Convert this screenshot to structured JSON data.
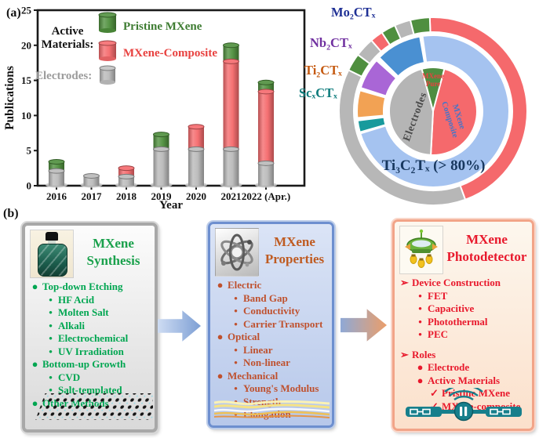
{
  "panel_a_label": "(a)",
  "panel_b_label": "(b)",
  "chart_data": [
    {
      "type": "bar",
      "stacked": true,
      "title": "",
      "xlabel": "Year",
      "ylabel": "Publications",
      "ylim": [
        0,
        25
      ],
      "yticks": [
        0,
        5,
        10,
        15,
        20,
        25
      ],
      "categories": [
        "2016",
        "2017",
        "2018",
        "2019",
        "2020",
        "2021",
        "2022 (Apr.)"
      ],
      "series": [
        {
          "name": "Electrodes",
          "color": "#b9b9b9",
          "values": [
            2.1,
            1.4,
            1.3,
            5.2,
            5.2,
            5.2,
            3.2
          ]
        },
        {
          "name": "MXene-Composite",
          "color": "#f5696c",
          "values": [
            0,
            0,
            1.2,
            0,
            3.2,
            12.5,
            10.2
          ]
        },
        {
          "name": "Pristine MXene",
          "color": "#4e8f3c",
          "values": [
            1.3,
            0,
            0,
            2.1,
            0,
            2.3,
            1.3
          ]
        }
      ],
      "legend": {
        "group_label_lines": [
          "Active",
          "Materials:"
        ],
        "group_label_color": "#111111",
        "entries": [
          {
            "label": "Pristine MXene",
            "swatch_color": "#4e8f3c",
            "text_color": "#3e7c32"
          },
          {
            "label": "MXene-Composite",
            "swatch_color": "#f5696c",
            "text_color": "#e8413f"
          }
        ],
        "electrodes_label": "Electrodes:",
        "electrodes_text_color": "#9b9b9b",
        "electrodes_swatch_color": "#c0c0c0"
      }
    },
    {
      "type": "pie",
      "subtype": "sunburst-donut",
      "rings": [
        {
          "name": "inner",
          "segments": [
            {
              "label": "MXene Pure",
              "color": "#4e8d41",
              "start": 345,
              "end": 375
            },
            {
              "label": "MXene Composite",
              "color": "#f5696c",
              "start": 15,
              "end": 183
            },
            {
              "label": "Electrodes",
              "color": "#b5b5b5",
              "start": 183,
              "end": 345
            }
          ]
        },
        {
          "name": "middle",
          "segments": [
            {
              "label": "Ti₃C₂Tₓ (> 80%)",
              "color": "#a5c3f0",
              "start": 352,
              "end": 613
            },
            {
              "label": "ScₓCTₓ",
              "color": "#189a9c",
              "start": 254,
              "end": 263
            },
            {
              "label": "Ti₂CTₓ",
              "color": "#f2a254",
              "start": 265,
              "end": 286
            },
            {
              "label": "Nb₂CTₓ",
              "color": "#a966d6",
              "start": 288,
              "end": 312
            },
            {
              "label": "Mo₂CTₓ",
              "color": "#4a90d2",
              "start": 315,
              "end": 350
            }
          ]
        },
        {
          "name": "outer",
          "segments": [
            {
              "label": "MXene-Composite",
              "color": "#f5696c",
              "start": 358,
              "end": 520
            },
            {
              "label": "Electrodes",
              "color": "#b7b7b7",
              "start": 160,
              "end": 296
            },
            {
              "label": "Pristine MXene",
              "color": "#4f8f3f",
              "start": 296,
              "end": 307
            },
            {
              "label": "Electrodes",
              "color": "#b7b7b7",
              "start": 307,
              "end": 319
            },
            {
              "label": "MXene-Composite",
              "color": "#f5696c",
              "start": 319,
              "end": 327
            },
            {
              "label": "Pristine MXene",
              "color": "#4f8f3f",
              "start": 327,
              "end": 336
            },
            {
              "label": "Electrodes",
              "color": "#b7b7b7",
              "start": 336,
              "end": 346
            },
            {
              "label": "Pristine MXene",
              "color": "#4f8f3f",
              "start": 346,
              "end": 358
            }
          ]
        }
      ],
      "callouts": [
        {
          "text": "Mo₂CTₓ",
          "color": "#1f3095"
        },
        {
          "text": "Nb₂CTₓ",
          "color": "#7030a0"
        },
        {
          "text": "Ti₂CTₓ",
          "color": "#c55a11"
        },
        {
          "text": "ScₓCTₓ",
          "color": "#0e7c7c"
        }
      ],
      "main_label": {
        "text": "Ti₃C₂Tₓ (> 80%)",
        "color": "#17375e"
      },
      "center_labels": {
        "pure": {
          "lines": [
            "MXene",
            "Pure"
          ],
          "color": "#e8413f"
        },
        "electrodes": {
          "text": "Electrodes",
          "color": "#4a4a4a"
        },
        "composite": {
          "lines": [
            "MXene",
            "Composite"
          ],
          "color": "#4575c8"
        }
      }
    }
  ],
  "boxes": [
    {
      "title_lines": [
        "MXene",
        "Synthesis"
      ],
      "title_color": "#1aa14c",
      "item_color": "#00a651",
      "bg_top": "#fcfcfc",
      "bg_bottom": "#d9d9d9",
      "border_color": "#a8a8a8",
      "icon": "bottle-icon",
      "items": [
        {
          "bullet": "●",
          "text": "Top-down Etching",
          "indent": 0
        },
        {
          "bullet": "•",
          "text": "HF Acid",
          "indent": 1
        },
        {
          "bullet": "•",
          "text": "Molten Salt",
          "indent": 1
        },
        {
          "bullet": "•",
          "text": "Alkali",
          "indent": 1
        },
        {
          "bullet": "•",
          "text": "Electrochemical",
          "indent": 1
        },
        {
          "bullet": "•",
          "text": "UV Irradiation",
          "indent": 1
        },
        {
          "bullet": "●",
          "text": "Bottom-up Growth",
          "indent": 0
        },
        {
          "bullet": "•",
          "text": "CVD",
          "indent": 1
        },
        {
          "bullet": "•",
          "text": "Salt-templated",
          "indent": 1
        },
        {
          "bullet": "●",
          "text": "Other Methods",
          "indent": 0
        }
      ]
    },
    {
      "title_lines": [
        "MXene",
        "Properties"
      ],
      "title_color": "#bf5b21",
      "item_color": "#bf512e",
      "bg_top": "#dbe4f6",
      "bg_bottom": "#b7c8ea",
      "border_color": "#6d8fcf",
      "icon": "atom-icon",
      "items": [
        {
          "bullet": "●",
          "text": "Electric",
          "indent": 0
        },
        {
          "bullet": "•",
          "text": "Band Gap",
          "indent": 1
        },
        {
          "bullet": "•",
          "text": "Conductivity",
          "indent": 1
        },
        {
          "bullet": "•",
          "text": "Carrier Transport",
          "indent": 1
        },
        {
          "bullet": "●",
          "text": "Optical",
          "indent": 0
        },
        {
          "bullet": "•",
          "text": "Linear",
          "indent": 1
        },
        {
          "bullet": "•",
          "text": "Non-linear",
          "indent": 1
        },
        {
          "bullet": "●",
          "text": "Mechanical",
          "indent": 0
        },
        {
          "bullet": "•",
          "text": "Young's Modulus",
          "indent": 1
        },
        {
          "bullet": "•",
          "text": "Strength",
          "indent": 1
        },
        {
          "bullet": "•",
          "text": "Elongation",
          "indent": 1
        }
      ]
    },
    {
      "title_lines": [
        "MXene",
        "Photodetector"
      ],
      "title_color": "#e8192c",
      "item_color": "#e8192c",
      "bg_top": "#fdf7ee",
      "bg_bottom": "#fbe0cb",
      "border_color": "#f2a488",
      "icon": "photodetector-icon",
      "items": [
        {
          "bullet": "➢",
          "text": "Device Construction",
          "indent": 0
        },
        {
          "bullet": "•",
          "text": "FET",
          "indent": 1
        },
        {
          "bullet": "•",
          "text": "Capacitive",
          "indent": 1
        },
        {
          "bullet": "•",
          "text": "Photothermal",
          "indent": 1
        },
        {
          "bullet": "•",
          "text": "PEC",
          "indent": 1
        },
        {
          "bullet": "➢",
          "text": "Roles",
          "indent": 0,
          "gap": true
        },
        {
          "bullet": "●",
          "text": "Electrode",
          "indent": 1
        },
        {
          "bullet": "●",
          "text": "Active Materials",
          "indent": 1
        },
        {
          "bullet": "✓",
          "text": "Pristine MXene",
          "indent": 2
        },
        {
          "bullet": "✓",
          "text": "MXene-composite",
          "indent": 2
        }
      ]
    }
  ],
  "arrows": [
    {
      "from": "#cedcf3",
      "to": "#7d9fd4"
    },
    {
      "from": "#8fa9d6",
      "to": "#eb9e6a"
    }
  ]
}
